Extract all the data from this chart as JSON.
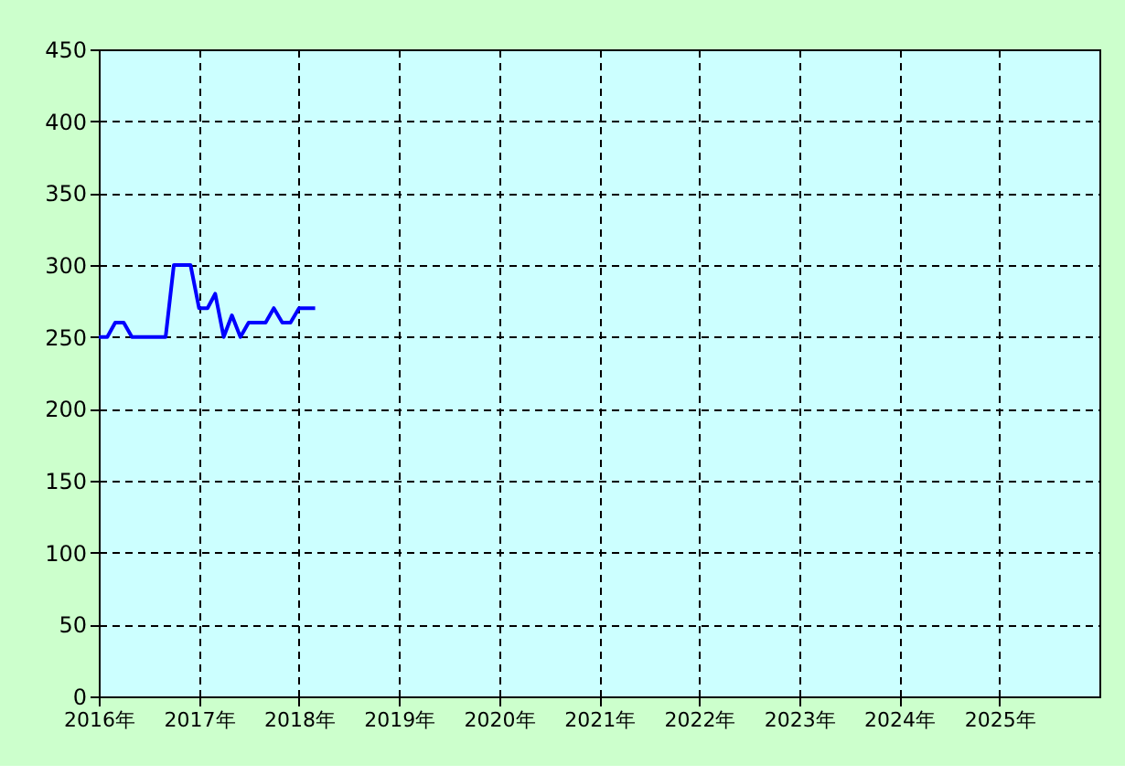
{
  "chart_data": {
    "type": "line",
    "x": [
      "2016-01",
      "2016-02",
      "2016-03",
      "2016-04",
      "2016-05",
      "2016-06",
      "2016-07",
      "2016-08",
      "2016-09",
      "2016-10",
      "2016-11",
      "2016-12",
      "2017-01",
      "2017-02",
      "2017-03",
      "2017-04",
      "2017-05",
      "2017-06",
      "2017-07",
      "2017-08",
      "2017-09",
      "2017-10",
      "2017-11",
      "2017-12",
      "2018-01",
      "2018-02",
      "2018-03"
    ],
    "series": [
      {
        "color": "#0000ff",
        "values": [
          250,
          250,
          260,
          260,
          250,
          250,
          250,
          250,
          250,
          300,
          300,
          300,
          270,
          270,
          280,
          250,
          265,
          250,
          260,
          260,
          260,
          270,
          260,
          260,
          270,
          270,
          270
        ]
      }
    ],
    "xlim": [
      "2016-01",
      "2026-01"
    ],
    "xticks": [
      {
        "value": "2016",
        "label": "2016年"
      },
      {
        "value": "2017",
        "label": "2017年"
      },
      {
        "value": "2018",
        "label": "2018年"
      },
      {
        "value": "2019",
        "label": "2019年"
      },
      {
        "value": "2020",
        "label": "2020年"
      },
      {
        "value": "2021",
        "label": "2021年"
      },
      {
        "value": "2022",
        "label": "2022年"
      },
      {
        "value": "2023",
        "label": "2023年"
      },
      {
        "value": "2024",
        "label": "2024年"
      },
      {
        "value": "2025",
        "label": "2025年"
      }
    ],
    "ylim": [
      0,
      450
    ],
    "yticks": [
      0,
      50,
      100,
      150,
      200,
      250,
      300,
      350,
      400,
      450
    ],
    "grid": true,
    "marker": "none",
    "line_style": "solid"
  }
}
